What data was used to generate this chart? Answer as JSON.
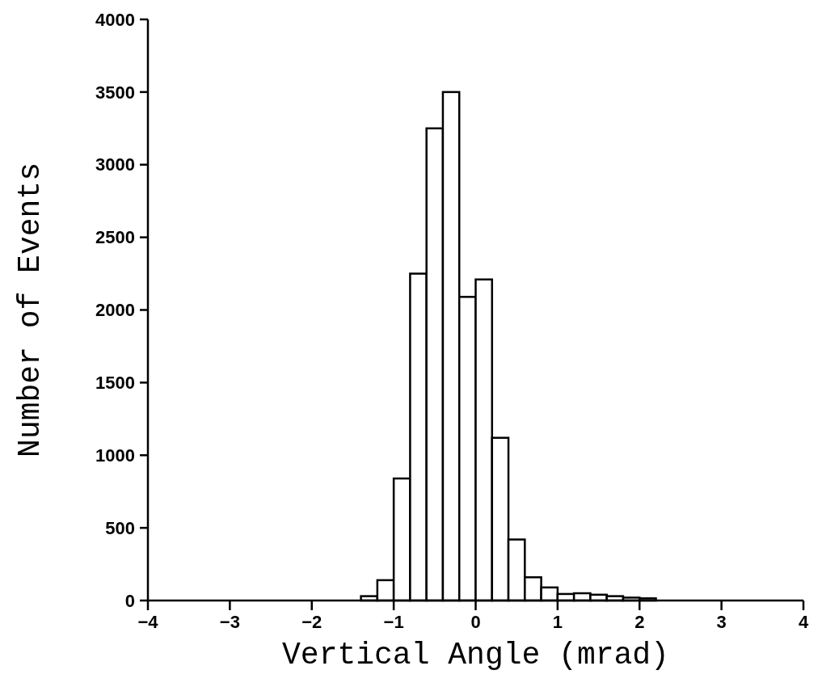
{
  "chart_data": {
    "type": "histogram",
    "xlabel": "Vertical Angle (mrad)",
    "ylabel": "Number of Events",
    "bins": [
      -1.4,
      -1.2,
      -1,
      -0.8,
      -0.6,
      -0.4,
      -0.2,
      0,
      0.2,
      0.4,
      0.6,
      0.8,
      1,
      1.2,
      1.4,
      1.6,
      1.8,
      2,
      2.2
    ],
    "values": [
      30,
      140,
      840,
      2250,
      3250,
      3500,
      2090,
      2210,
      1120,
      420,
      160,
      90,
      45,
      50,
      40,
      30,
      20,
      15
    ],
    "color": "#000000",
    "xlim": [
      -4,
      4
    ],
    "xticks": [
      -4,
      -3,
      -2,
      -1,
      0,
      1,
      2,
      3,
      4
    ],
    "ylim": [
      0,
      4000
    ],
    "yticks": [
      0,
      500,
      1000,
      1500,
      2000,
      2500,
      3000,
      3500,
      4000
    ],
    "grid": false
  }
}
